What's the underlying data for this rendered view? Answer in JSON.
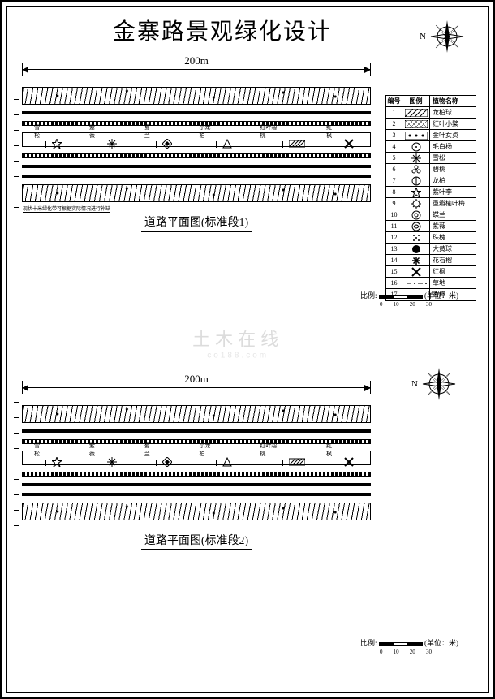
{
  "title": "金寨路景观绿化设计",
  "compass_label": "N",
  "sections": [
    {
      "dim_label": "200m",
      "caption": "道路平面图(标准段1)",
      "footnote": "现状十米绿化带可根据实际情况进行补缺",
      "median_plants": [
        {
          "label": "雪松",
          "icon": "star"
        },
        {
          "label": "紫薇",
          "icon": "burst"
        },
        {
          "label": "蜀兰",
          "icon": "diamond"
        },
        {
          "label": "小龙柏",
          "icon": "tri"
        },
        {
          "label": "红叶碧桃",
          "icon": "hatch"
        },
        {
          "label": "红枫",
          "icon": "cross"
        }
      ]
    },
    {
      "dim_label": "200m",
      "caption": "道路平面图(标准段2)",
      "footnote": "",
      "median_plants": [
        {
          "label": "雪松",
          "icon": "star"
        },
        {
          "label": "紫薇",
          "icon": "burst"
        },
        {
          "label": "蜀兰",
          "icon": "diamond"
        },
        {
          "label": "小龙柏",
          "icon": "tri"
        },
        {
          "label": "红叶碧桃",
          "icon": "hatch"
        },
        {
          "label": "红枫",
          "icon": "cross"
        }
      ]
    }
  ],
  "scale": {
    "label": "比例:",
    "values": [
      "0",
      "10",
      "20",
      "30"
    ],
    "unit": "(单位：米)"
  },
  "legend": {
    "head": {
      "no": "编号",
      "icon": "图例",
      "name": "植物名称"
    },
    "rows": [
      {
        "no": "1",
        "icon": "hatch-a",
        "name": "龙柏球"
      },
      {
        "no": "2",
        "icon": "hatch-b",
        "name": "红叶小檗"
      },
      {
        "no": "3",
        "icon": "hatch-c",
        "name": "金叶女贞"
      },
      {
        "no": "4",
        "icon": "circ-a",
        "name": "毛白杨"
      },
      {
        "no": "5",
        "icon": "burst",
        "name": "雪松"
      },
      {
        "no": "6",
        "icon": "flower",
        "name": "碧桃"
      },
      {
        "no": "7",
        "icon": "circ-b",
        "name": "龙柏"
      },
      {
        "no": "8",
        "icon": "star",
        "name": "紫叶李"
      },
      {
        "no": "9",
        "icon": "gear",
        "name": "重瓣榆叶梅"
      },
      {
        "no": "10",
        "icon": "ring",
        "name": "蝶兰"
      },
      {
        "no": "11",
        "icon": "circ-c",
        "name": "紫薇"
      },
      {
        "no": "12",
        "icon": "dots",
        "name": "珠槐"
      },
      {
        "no": "13",
        "icon": "circ-d",
        "name": "大黄球"
      },
      {
        "no": "14",
        "icon": "asterisk",
        "name": "花石榴"
      },
      {
        "no": "15",
        "icon": "cross",
        "name": "红枫"
      },
      {
        "no": "16",
        "icon": "dash",
        "name": "草地"
      },
      {
        "no": "17",
        "icon": "blank",
        "name": "香樟"
      }
    ]
  },
  "watermark": {
    "main": "土木在线",
    "sub": "co188.com"
  },
  "colors": {
    "fg": "#000000",
    "bg": "#ffffff"
  }
}
